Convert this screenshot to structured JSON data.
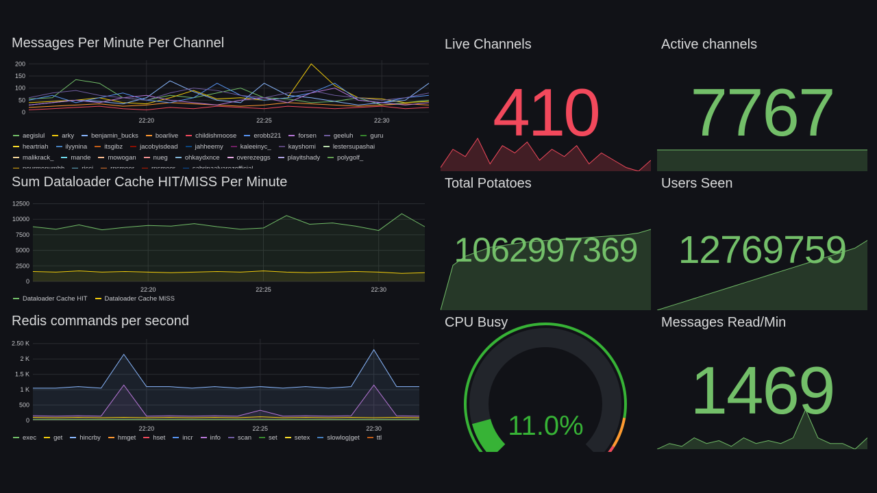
{
  "panels": {
    "messages": {
      "title": "Messages Per Minute Per Channel",
      "legend": [
        {
          "name": "aegislul",
          "color": "#73bf69"
        },
        {
          "name": "arky",
          "color": "#f2cc0c"
        },
        {
          "name": "benjamin_bucks",
          "color": "#8ab8ff"
        },
        {
          "name": "boarlive",
          "color": "#ff9830"
        },
        {
          "name": "childishmoose",
          "color": "#f2495c"
        },
        {
          "name": "erobb221",
          "color": "#5794f2"
        },
        {
          "name": "forsen",
          "color": "#b877d9"
        },
        {
          "name": "geeluh",
          "color": "#705da0"
        },
        {
          "name": "guru",
          "color": "#37872d"
        },
        {
          "name": "heartriah",
          "color": "#fade2a"
        },
        {
          "name": "ilyynina",
          "color": "#447ebc"
        },
        {
          "name": "itsgibz",
          "color": "#c15c17"
        },
        {
          "name": "jacobyisdead",
          "color": "#890f02"
        },
        {
          "name": "jahheemy",
          "color": "#0a437c"
        },
        {
          "name": "kaleeinyc_",
          "color": "#6d1f62"
        },
        {
          "name": "kayshomi",
          "color": "#584477"
        },
        {
          "name": "lestersupashai",
          "color": "#b7dbab"
        },
        {
          "name": "malikrack_",
          "color": "#f4d598"
        },
        {
          "name": "mande",
          "color": "#70dbed"
        },
        {
          "name": "mowogan",
          "color": "#f9ba8f"
        },
        {
          "name": "nueg",
          "color": "#f29191"
        },
        {
          "name": "ohkaydxnce",
          "color": "#82b5d8"
        },
        {
          "name": "overezeggs",
          "color": "#e5a8e2"
        },
        {
          "name": "playitshady",
          "color": "#aea2e0"
        },
        {
          "name": "polygolf_",
          "color": "#629e51"
        },
        {
          "name": "pourmenumbb",
          "color": "#e5ac0e"
        },
        {
          "name": "ricci",
          "color": "#64b0c8"
        },
        {
          "name": "rnsmeer",
          "color": "#e0752d"
        },
        {
          "name": "rnsmeer",
          "color": "#bf1b00"
        },
        {
          "name": "sabrinaalvarezofficial",
          "color": "#0a50a1"
        }
      ]
    },
    "cache": {
      "title": "Sum Dataloader Cache HIT/MISS Per Minute",
      "legend": [
        {
          "name": "Dataloader Cache HIT",
          "color": "#73bf69"
        },
        {
          "name": "Dataloader Cache MISS",
          "color": "#f2cc0c"
        }
      ]
    },
    "redis": {
      "title": "Redis commands per second",
      "legend": [
        {
          "name": "exec",
          "color": "#73bf69"
        },
        {
          "name": "get",
          "color": "#f2cc0c"
        },
        {
          "name": "hincrby",
          "color": "#8ab8ff"
        },
        {
          "name": "hmget",
          "color": "#ff9830"
        },
        {
          "name": "hset",
          "color": "#f2495c"
        },
        {
          "name": "incr",
          "color": "#5794f2"
        },
        {
          "name": "info",
          "color": "#b877d9"
        },
        {
          "name": "scan",
          "color": "#705da0"
        },
        {
          "name": "set",
          "color": "#37872d"
        },
        {
          "name": "setex",
          "color": "#fade2a"
        },
        {
          "name": "slowlog|get",
          "color": "#447ebc"
        },
        {
          "name": "ttl",
          "color": "#c15c17"
        }
      ]
    },
    "live": {
      "title": "Live Channels",
      "value": "410",
      "color": "#f2495c"
    },
    "active": {
      "title": "Active channels",
      "value": "7767",
      "color": "#73bf69"
    },
    "potatoes": {
      "title": "Total Potatoes",
      "value": "1062997369",
      "color": "#73bf69"
    },
    "users": {
      "title": "Users Seen",
      "value": "12769759",
      "color": "#73bf69"
    },
    "cpu": {
      "title": "CPU Busy",
      "value": "11.0%",
      "percent": 11.0,
      "color": "#37b336"
    },
    "msgread": {
      "title": "Messages Read/Min",
      "value": "1469",
      "color": "#73bf69"
    }
  },
  "chart_data": [
    {
      "type": "line",
      "id": "messages",
      "title": "Messages Per Minute Per Channel",
      "x": [
        "22:15",
        "22:16",
        "22:17",
        "22:18",
        "22:19",
        "22:20",
        "22:21",
        "22:22",
        "22:23",
        "22:24",
        "22:25",
        "22:26",
        "22:27",
        "22:28",
        "22:29",
        "22:30",
        "22:31",
        "22:32"
      ],
      "xticks": [
        "22:20",
        "22:25",
        "22:30"
      ],
      "yticks": [
        0,
        50,
        100,
        150,
        200
      ],
      "ylim": [
        0,
        215
      ],
      "series": [
        {
          "name": "aegislul",
          "values": [
            55,
            60,
            135,
            120,
            60,
            50,
            70,
            60,
            80,
            100,
            60,
            55,
            40,
            45,
            60,
            30,
            40,
            50
          ]
        },
        {
          "name": "arky",
          "values": [
            40,
            45,
            50,
            60,
            40,
            35,
            60,
            90,
            55,
            60,
            50,
            60,
            200,
            110,
            60,
            55,
            40,
            45
          ]
        },
        {
          "name": "benjamin_bucks",
          "values": [
            30,
            40,
            50,
            45,
            35,
            60,
            130,
            85,
            50,
            40,
            120,
            70,
            60,
            45,
            30,
            40,
            50,
            120
          ]
        },
        {
          "name": "boarlive",
          "values": [
            20,
            25,
            30,
            35,
            25,
            30,
            40,
            35,
            30,
            25,
            30,
            40,
            35,
            30,
            25,
            30,
            35,
            30
          ]
        },
        {
          "name": "childishmoose",
          "values": [
            10,
            15,
            20,
            25,
            15,
            10,
            20,
            15,
            25,
            20,
            15,
            25,
            20,
            15,
            20,
            25,
            15,
            20
          ]
        },
        {
          "name": "erobb221",
          "values": [
            50,
            70,
            40,
            60,
            80,
            50,
            40,
            60,
            120,
            70,
            50,
            60,
            80,
            120,
            50,
            40,
            60,
            70
          ]
        },
        {
          "name": "forsen",
          "values": [
            30,
            40,
            50,
            40,
            60,
            70,
            50,
            40,
            30,
            50,
            60,
            40,
            80,
            100,
            50,
            40,
            30,
            40
          ]
        },
        {
          "name": "geeluh",
          "values": [
            60,
            80,
            90,
            70,
            60,
            50,
            80,
            100,
            90,
            70,
            60,
            80,
            90,
            70,
            60,
            50,
            60,
            80
          ]
        }
      ]
    },
    {
      "type": "area",
      "id": "cache",
      "title": "Sum Dataloader Cache HIT/MISS Per Minute",
      "x": [
        "22:15",
        "22:16",
        "22:17",
        "22:18",
        "22:19",
        "22:20",
        "22:21",
        "22:22",
        "22:23",
        "22:24",
        "22:25",
        "22:26",
        "22:27",
        "22:28",
        "22:29",
        "22:30",
        "22:31",
        "22:32"
      ],
      "xticks": [
        "22:20",
        "22:25",
        "22:30"
      ],
      "yticks": [
        0,
        2500,
        5000,
        7500,
        10000,
        12500
      ],
      "ylim": [
        0,
        13000
      ],
      "series": [
        {
          "name": "Dataloader Cache HIT",
          "values": [
            8800,
            8400,
            9100,
            8300,
            8700,
            9000,
            8900,
            9300,
            8800,
            8400,
            8600,
            10600,
            9200,
            9400,
            8900,
            8200,
            10900,
            8800
          ]
        },
        {
          "name": "Dataloader Cache MISS",
          "values": [
            1600,
            1500,
            1700,
            1500,
            1600,
            1500,
            1400,
            1500,
            1600,
            1500,
            1700,
            1500,
            1400,
            1500,
            1600,
            1500,
            1300,
            1400
          ]
        }
      ]
    },
    {
      "type": "area",
      "id": "redis",
      "title": "Redis commands per second",
      "x": [
        "22:15",
        "22:16",
        "22:17",
        "22:18",
        "22:19",
        "22:20",
        "22:21",
        "22:22",
        "22:23",
        "22:24",
        "22:25",
        "22:26",
        "22:27",
        "22:28",
        "22:29",
        "22:30",
        "22:31",
        "22:32"
      ],
      "xticks": [
        "22:20",
        "22:25",
        "22:30"
      ],
      "yticks": [
        "0",
        "500",
        "1 K",
        "1.5 K",
        "2 K",
        "2.50 K"
      ],
      "ytick_values": [
        0,
        500,
        1000,
        1500,
        2000,
        2500
      ],
      "ylim": [
        0,
        2650
      ],
      "series": [
        {
          "name": "hincrby",
          "values": [
            1050,
            1050,
            1100,
            1050,
            2150,
            1100,
            1100,
            1050,
            1100,
            1050,
            1100,
            1050,
            1100,
            1050,
            1100,
            2300,
            1100,
            1100
          ]
        },
        {
          "name": "info",
          "values": [
            150,
            140,
            150,
            140,
            1150,
            140,
            150,
            140,
            150,
            140,
            330,
            140,
            150,
            140,
            150,
            1150,
            150,
            140
          ]
        },
        {
          "name": "get",
          "values": [
            100,
            90,
            100,
            90,
            100,
            90,
            100,
            90,
            100,
            90,
            120,
            90,
            100,
            90,
            100,
            90,
            100,
            90
          ]
        },
        {
          "name": "exec",
          "values": [
            30,
            30,
            30,
            30,
            30,
            30,
            30,
            30,
            30,
            30,
            30,
            30,
            30,
            30,
            30,
            30,
            30,
            30
          ]
        }
      ]
    },
    {
      "type": "area",
      "id": "spark-live",
      "values": [
        390,
        440,
        420,
        470,
        400,
        450,
        430,
        460,
        410,
        440,
        420,
        450,
        400,
        430,
        410,
        390,
        380,
        410
      ]
    },
    {
      "type": "area",
      "id": "spark-potatoes",
      "values": [
        1,
        6,
        7,
        7.5,
        8,
        8.2,
        8.4,
        8.6,
        8.7,
        8.8,
        8.9,
        9,
        9.1,
        9.2,
        9.3,
        9.4,
        9.6,
        10
      ]
    },
    {
      "type": "area",
      "id": "spark-users",
      "values": [
        1,
        1.5,
        2,
        2.5,
        3,
        3.5,
        4,
        4.5,
        5,
        5.5,
        6,
        6.5,
        7,
        7.5,
        8,
        8.5,
        9,
        10
      ]
    },
    {
      "type": "area",
      "id": "spark-msgread",
      "values": [
        1,
        2,
        1.5,
        3,
        2,
        2.5,
        1.5,
        3,
        2,
        2.5,
        2,
        3,
        8,
        3,
        2,
        2,
        1,
        3
      ]
    }
  ]
}
